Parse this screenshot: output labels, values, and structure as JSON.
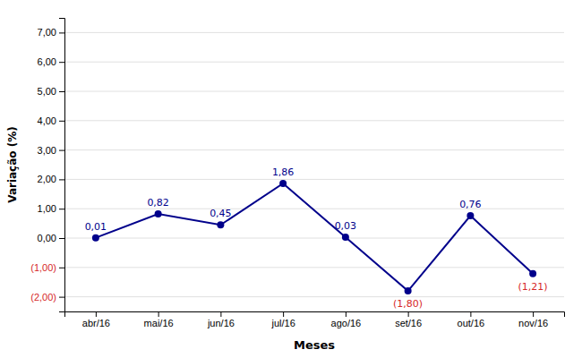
{
  "chart_data": {
    "type": "line",
    "xlabel": "Meses",
    "ylabel": "Variação (%)",
    "categories": [
      "abr/16",
      "mai/16",
      "jun/16",
      "jul/16",
      "ago/16",
      "set/16",
      "out/16",
      "nov/16"
    ],
    "values": [
      0.01,
      0.82,
      0.45,
      1.86,
      0.03,
      -1.8,
      0.76,
      -1.21
    ],
    "value_labels": [
      "0,01",
      "0,82",
      "0,45",
      "1,86",
      "0,03",
      "(1,80)",
      "0,76",
      "(1,21)"
    ],
    "color": "#00008B",
    "marker": "circle",
    "line_style": "solid",
    "data_labels": true,
    "grid": true,
    "ylim": [
      -2.5,
      7.5
    ],
    "yticks": [
      {
        "value": -2.0,
        "label": "(2,00)"
      },
      {
        "value": -1.0,
        "label": "(1,00)"
      },
      {
        "value": 0.0,
        "label": "0,00"
      },
      {
        "value": 1.0,
        "label": "1,00"
      },
      {
        "value": 2.0,
        "label": "2,00"
      },
      {
        "value": 3.0,
        "label": "3,00"
      },
      {
        "value": 4.0,
        "label": "4,00"
      },
      {
        "value": 5.0,
        "label": "5,00"
      },
      {
        "value": 6.0,
        "label": "6,00"
      },
      {
        "value": 7.0,
        "label": "7,00"
      }
    ]
  }
}
